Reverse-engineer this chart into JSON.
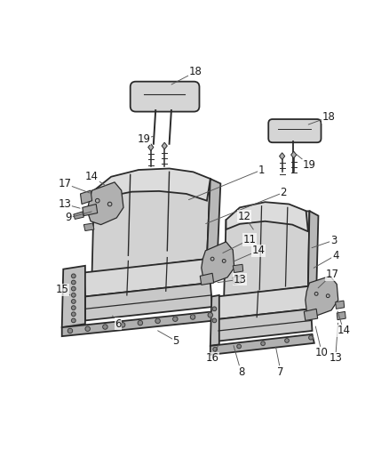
{
  "background_color": "#ffffff",
  "line_color": "#2a2a2a",
  "seat_fill": "#d0d0d0",
  "seat_fill_dark": "#b8b8b8",
  "seat_fill_light": "#e0e0e0",
  "figsize": [
    4.38,
    5.33
  ],
  "dpi": 100,
  "label_fontsize": 8.5,
  "text_color": "#1a1a1a",
  "leader_color": "#555555"
}
